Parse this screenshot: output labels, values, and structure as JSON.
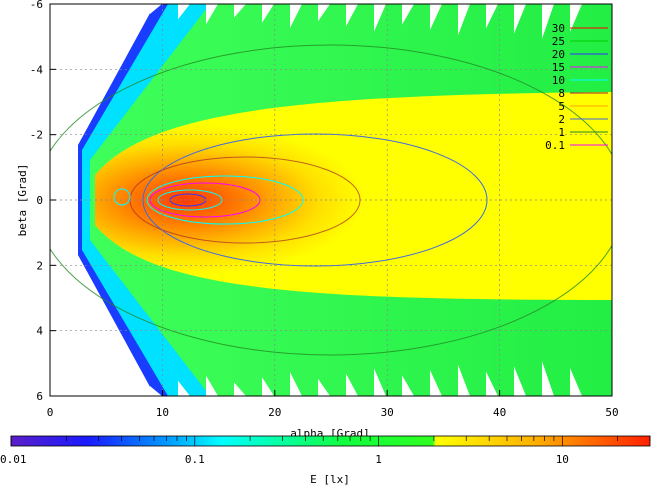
{
  "chart_data": {
    "type": "heatmap",
    "title": "",
    "xlabel": "alpha [Grad]",
    "ylabel": "beta [Grad]",
    "xlim": [
      0,
      50
    ],
    "ylim": [
      6,
      -6
    ],
    "x_ticks": [
      0,
      10,
      20,
      30,
      40,
      50
    ],
    "x_tick_labels": [
      "0",
      "10",
      "20",
      "30",
      "40",
      "50"
    ],
    "y_ticks": [
      -6,
      -4,
      -2,
      0,
      2,
      4,
      6
    ],
    "y_tick_labels": [
      "-6",
      "-4",
      "-2",
      "0",
      "2",
      "4",
      "6"
    ],
    "grid": true,
    "peak": {
      "alpha": 12.5,
      "beta": 0,
      "value": 30
    },
    "contour_levels": [
      30,
      25,
      20,
      15,
      10,
      8,
      5,
      2,
      1,
      0.1
    ],
    "contour_legend": [
      {
        "label": "30",
        "color": "#ff0000"
      },
      {
        "label": "25",
        "color": "#00cc00"
      },
      {
        "label": "20",
        "color": "#3333ff"
      },
      {
        "label": "15",
        "color": "#ff00ff"
      },
      {
        "label": "10",
        "color": "#00ffff"
      },
      {
        "label": "8",
        "color": "#a52a2a"
      },
      {
        "label": "5",
        "color": "#ffa500"
      },
      {
        "label": "2",
        "color": "#4169e1"
      },
      {
        "label": "1",
        "color": "#228b22"
      },
      {
        "label": "0.1",
        "color": "#ff00ff"
      }
    ],
    "legend_position": "top-right",
    "colorbar": {
      "label": "E [lx]",
      "scale": "log",
      "range": [
        0.01,
        30
      ],
      "tick_labels": [
        "0.01",
        "0.1",
        "1",
        "10"
      ],
      "tick_values": [
        0.01,
        0.1,
        1,
        10
      ]
    }
  }
}
